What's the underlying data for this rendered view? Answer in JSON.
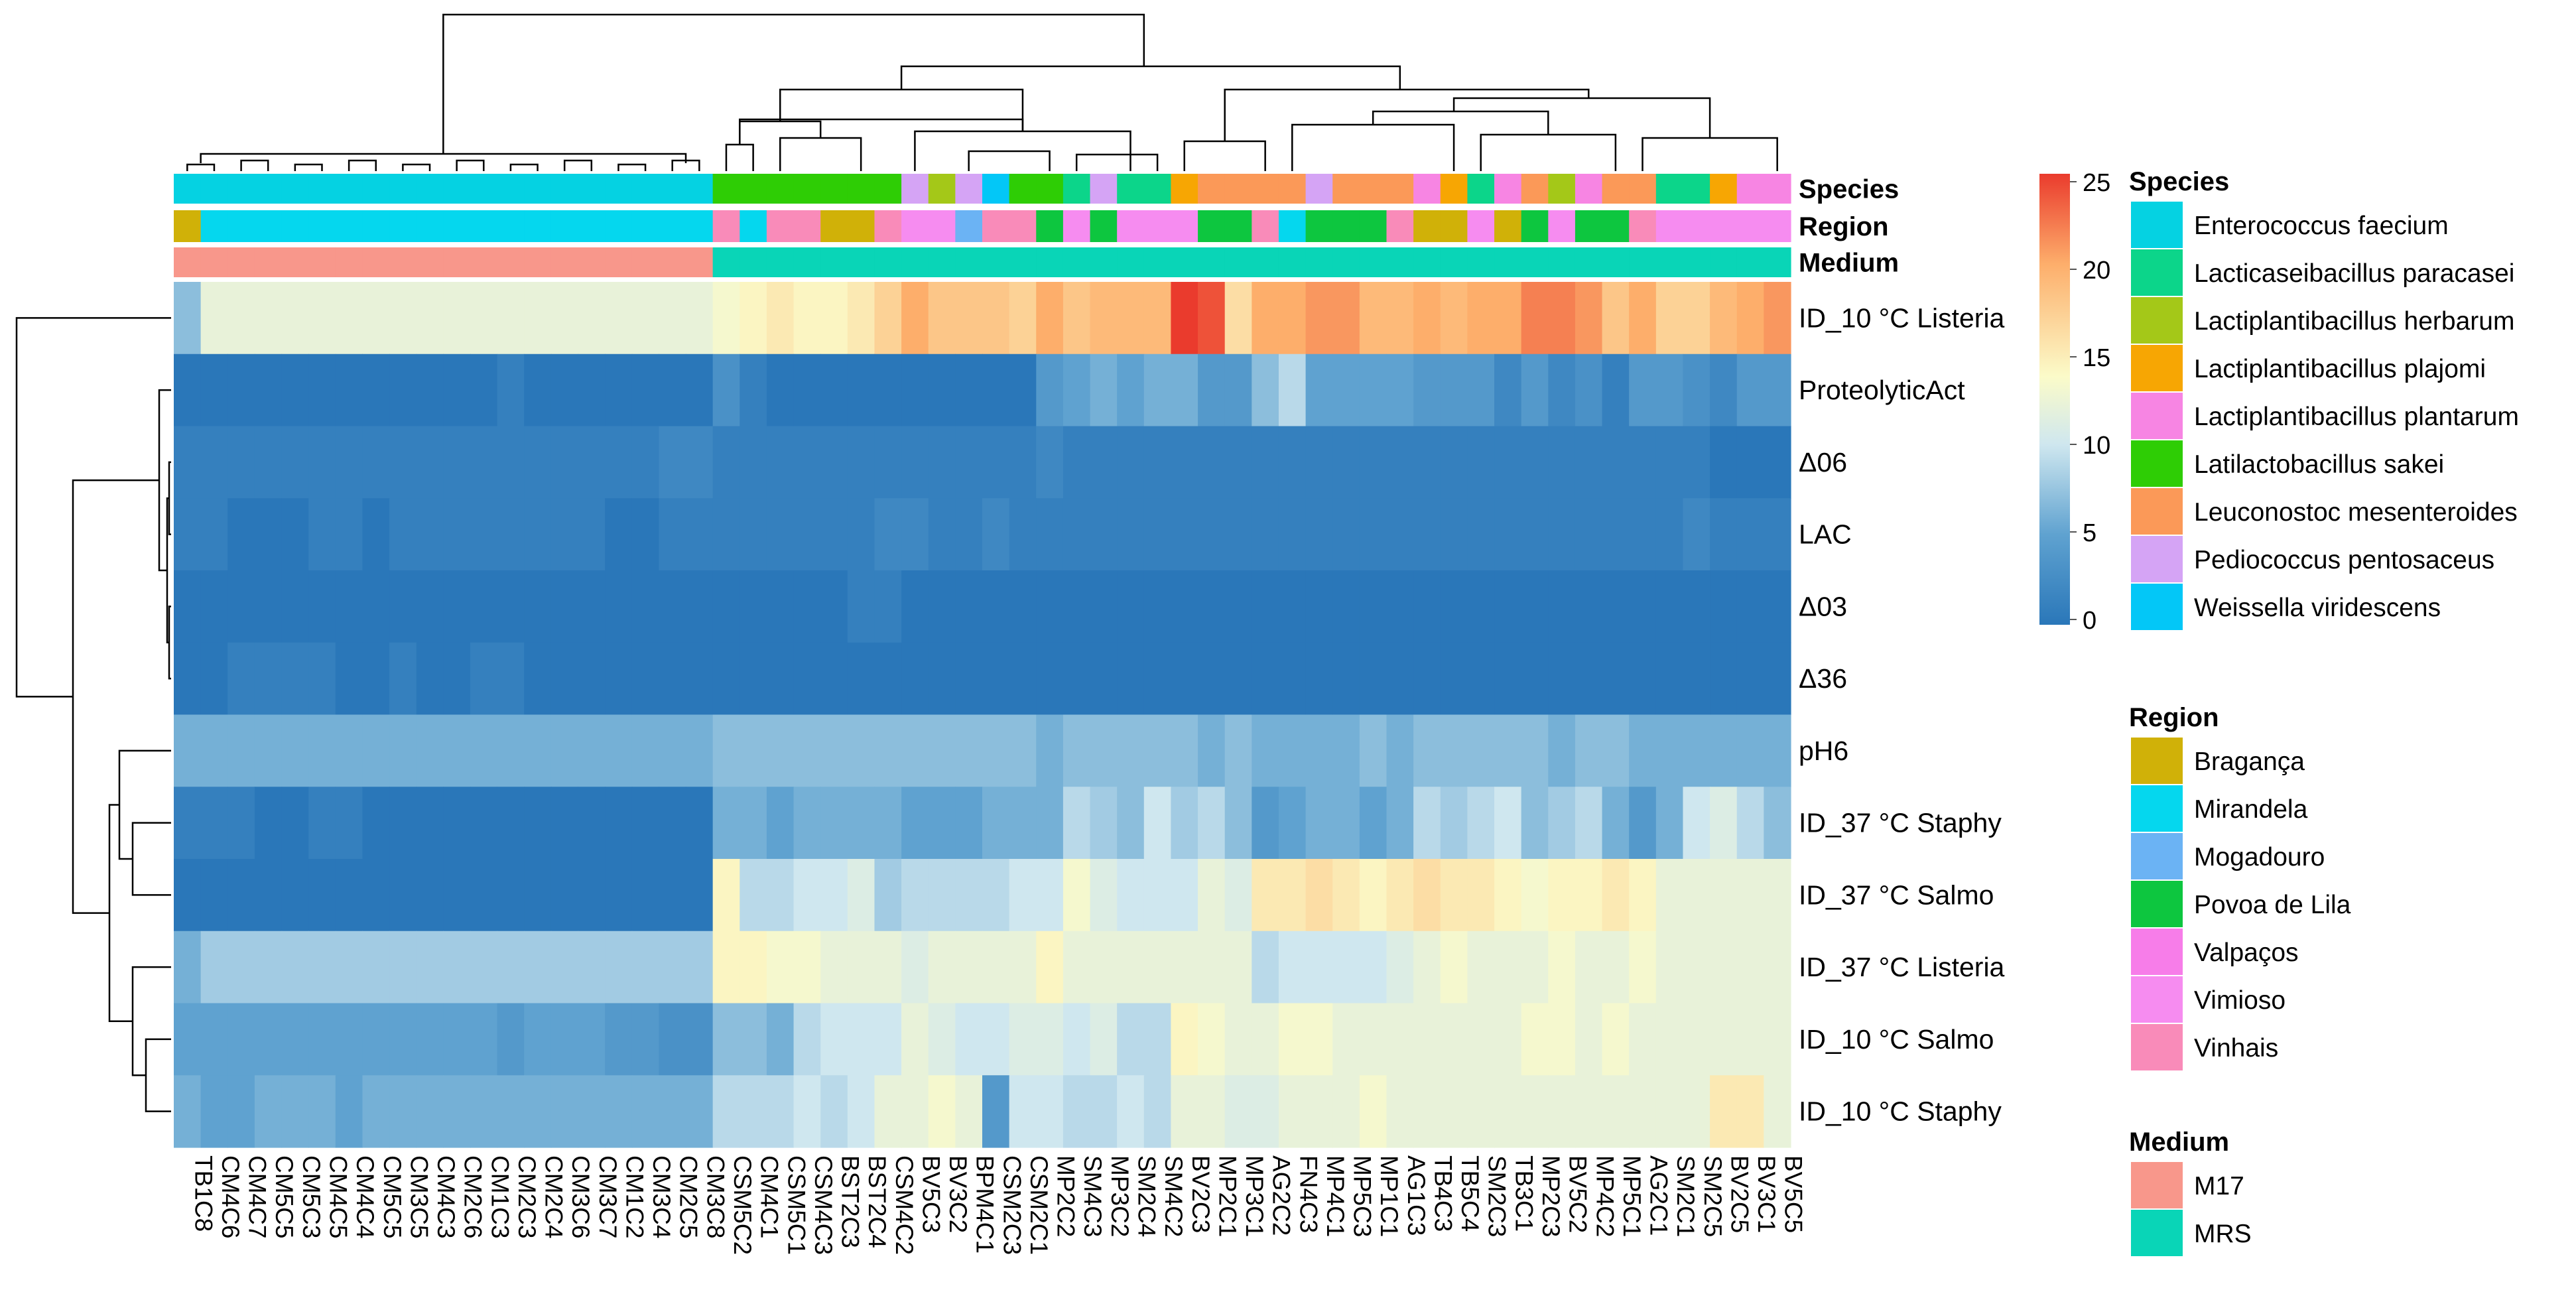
{
  "chart_data": {
    "type": "heatmap",
    "annotation_labels": [
      "Species",
      "Region",
      "Medium"
    ],
    "column_labels": [
      "TB1C8",
      "CM4C6",
      "CM4C7",
      "CM5C5",
      "CM5C3",
      "CM4C5",
      "CM4C4",
      "CM5C5",
      "CM3C5",
      "CM4C3",
      "CM2C6",
      "CM1C3",
      "CM2C3",
      "CM2C4",
      "CM3C6",
      "CM3C7",
      "CM1C2",
      "CM3C4",
      "CM2C5",
      "CM3C8",
      "CSM5C2",
      "CM4C1",
      "CSM5C1",
      "CSM4C3",
      "BST2C3",
      "BST2C4",
      "CSM4C2",
      "BV5C3",
      "BV3C2",
      "BPM4C1",
      "CSM2C3",
      "CSM2C1",
      "MP2C2",
      "SM4C3",
      "MP3C2",
      "SM2C4",
      "SM4C2",
      "BV2C3",
      "MP2C1",
      "MP3C1",
      "AG2C2",
      "FN4C3",
      "MP4C1",
      "MP5C3",
      "MP1C1",
      "AG1C3",
      "TB4C3",
      "TB5C4",
      "SM2C3",
      "TB3C1",
      "MP2C3",
      "BV5C2",
      "MP4C2",
      "MP5C1",
      "AG2C1",
      "SM2C1",
      "SM2C5",
      "BV2C5",
      "BV3C1",
      "BV5C5"
    ],
    "row_labels": [
      "ID_10 °C Listeria",
      "ProteolyticAct",
      "Δ06",
      "LAC",
      "Δ03",
      "Δ36",
      "pH6",
      "ID_37 °C Staphy",
      "ID_37 °C Salmo",
      "ID_37 °C Listeria",
      "ID_10 °C Salmo",
      "ID_10 °C Staphy"
    ],
    "species_per_column": [
      "Enterococcus faecium",
      "Enterococcus faecium",
      "Enterococcus faecium",
      "Enterococcus faecium",
      "Enterococcus faecium",
      "Enterococcus faecium",
      "Enterococcus faecium",
      "Enterococcus faecium",
      "Enterococcus faecium",
      "Enterococcus faecium",
      "Enterococcus faecium",
      "Enterococcus faecium",
      "Enterococcus faecium",
      "Enterococcus faecium",
      "Enterococcus faecium",
      "Enterococcus faecium",
      "Enterococcus faecium",
      "Enterococcus faecium",
      "Enterococcus faecium",
      "Enterococcus faecium",
      "Latilactobacillus sakei",
      "Latilactobacillus sakei",
      "Latilactobacillus sakei",
      "Latilactobacillus sakei",
      "Latilactobacillus sakei",
      "Latilactobacillus sakei",
      "Latilactobacillus sakei",
      "Pediococcus pentosaceus",
      "Lactiplantibacillus herbarum",
      "Pediococcus pentosaceus",
      "Weissella viridescens",
      "Latilactobacillus sakei",
      "Latilactobacillus sakei",
      "Lacticaseibacillus paracasei",
      "Pediococcus pentosaceus",
      "Lacticaseibacillus paracasei",
      "Lacticaseibacillus paracasei",
      "Lactiplantibacillus plajomi",
      "Leuconostoc mesenteroides",
      "Leuconostoc mesenteroides",
      "Leuconostoc mesenteroides",
      "Leuconostoc mesenteroides",
      "Pediococcus pentosaceus",
      "Leuconostoc mesenteroides",
      "Leuconostoc mesenteroides",
      "Leuconostoc mesenteroides",
      "Lactiplantibacillus plantarum",
      "Lactiplantibacillus plajomi",
      "Lacticaseibacillus paracasei",
      "Lactiplantibacillus plantarum",
      "Leuconostoc mesenteroides",
      "Lactiplantibacillus herbarum",
      "Lactiplantibacillus plantarum",
      "Leuconostoc mesenteroides",
      "Leuconostoc mesenteroides",
      "Lacticaseibacillus paracasei",
      "Lacticaseibacillus paracasei",
      "Lactiplantibacillus plajomi",
      "Lactiplantibacillus plantarum",
      "Lactiplantibacillus plantarum"
    ],
    "region_per_column": [
      "Bragança",
      "Mirandela",
      "Mirandela",
      "Mirandela",
      "Mirandela",
      "Mirandela",
      "Mirandela",
      "Mirandela",
      "Mirandela",
      "Mirandela",
      "Mirandela",
      "Mirandela",
      "Mirandela",
      "Mirandela",
      "Mirandela",
      "Mirandela",
      "Mirandela",
      "Mirandela",
      "Mirandela",
      "Mirandela",
      "Vinhais",
      "Mirandela",
      "Vinhais",
      "Vinhais",
      "Bragança",
      "Bragança",
      "Vinhais",
      "Vimioso",
      "Vimioso",
      "Mogadouro",
      "Vinhais",
      "Vinhais",
      "Povoa de Lila",
      "Vimioso",
      "Povoa de Lila",
      "Vimioso",
      "Vimioso",
      "Vimioso",
      "Povoa de Lila",
      "Povoa de Lila",
      "Vinhais",
      "Mirandela",
      "Povoa de Lila",
      "Povoa de Lila",
      "Povoa de Lila",
      "Vinhais",
      "Bragança",
      "Bragança",
      "Vimioso",
      "Bragança",
      "Povoa de Lila",
      "Vimioso",
      "Povoa de Lila",
      "Povoa de Lila",
      "Vinhais",
      "Vimioso",
      "Vimioso",
      "Vimioso",
      "Vimioso",
      "Vimioso"
    ],
    "medium_per_column": [
      "M17",
      "M17",
      "M17",
      "M17",
      "M17",
      "M17",
      "M17",
      "M17",
      "M17",
      "M17",
      "M17",
      "M17",
      "M17",
      "M17",
      "M17",
      "M17",
      "M17",
      "M17",
      "M17",
      "M17",
      "MRS",
      "MRS",
      "MRS",
      "MRS",
      "MRS",
      "MRS",
      "MRS",
      "MRS",
      "MRS",
      "MRS",
      "MRS",
      "MRS",
      "MRS",
      "MRS",
      "MRS",
      "MRS",
      "MRS",
      "MRS",
      "MRS",
      "MRS",
      "MRS",
      "MRS",
      "MRS",
      "MRS",
      "MRS",
      "MRS",
      "MRS",
      "MRS",
      "MRS",
      "MRS",
      "MRS",
      "MRS",
      "MRS",
      "MRS",
      "MRS",
      "MRS",
      "MRS",
      "MRS",
      "MRS",
      "MRS"
    ],
    "values": [
      [
        7,
        12,
        12,
        12,
        12,
        12,
        12,
        12,
        12,
        12,
        12,
        12,
        12,
        12,
        12,
        12,
        12,
        12,
        12,
        12,
        13,
        14,
        15,
        14,
        14,
        15,
        17,
        20,
        18,
        18,
        18,
        17,
        20,
        18,
        19,
        19,
        19,
        25,
        24,
        16,
        20,
        20,
        21,
        21,
        19,
        19,
        20,
        19,
        20,
        20,
        22,
        22,
        21,
        18,
        20,
        17,
        17,
        19,
        20,
        21
      ],
      [
        0,
        0,
        0,
        0,
        0,
        0,
        0,
        0,
        0,
        0,
        0,
        0,
        1,
        0,
        0,
        0,
        0,
        0,
        0,
        0,
        3,
        1,
        0,
        0,
        0,
        0,
        0,
        0,
        0,
        0,
        0,
        0,
        4,
        5,
        6,
        5,
        6,
        6,
        4,
        4,
        7,
        9,
        5,
        5,
        5,
        5,
        4,
        4,
        4,
        2,
        4,
        2,
        3,
        1,
        4,
        4,
        3,
        2,
        4,
        4
      ],
      [
        1,
        1,
        1,
        1,
        1,
        1,
        1,
        1,
        1,
        1,
        1,
        1,
        1,
        1,
        1,
        1,
        1,
        1,
        2,
        2,
        1,
        1,
        1,
        1,
        1,
        1,
        1,
        1,
        1,
        1,
        1,
        1,
        2,
        1,
        1,
        1,
        1,
        1,
        1,
        1,
        1,
        1,
        1,
        1,
        1,
        1,
        1,
        1,
        1,
        1,
        1,
        1,
        1,
        1,
        1,
        1,
        1,
        0,
        0,
        0
      ],
      [
        1,
        1,
        0,
        0,
        0,
        1,
        1,
        0,
        1,
        1,
        1,
        1,
        1,
        1,
        1,
        1,
        0,
        0,
        1,
        1,
        1,
        1,
        1,
        1,
        1,
        1,
        2,
        2,
        1,
        1,
        2,
        1,
        1,
        1,
        1,
        1,
        1,
        1,
        1,
        1,
        1,
        1,
        1,
        1,
        1,
        1,
        1,
        1,
        1,
        1,
        1,
        1,
        1,
        1,
        1,
        1,
        2,
        1,
        1,
        1
      ],
      [
        0,
        0,
        0,
        0,
        0,
        0,
        0,
        0,
        0,
        0,
        0,
        0,
        0,
        0,
        0,
        0,
        0,
        0,
        0,
        0,
        0,
        0,
        0,
        0,
        0,
        1,
        1,
        0,
        0,
        0,
        0,
        0,
        0,
        0,
        0,
        0,
        0,
        0,
        0,
        0,
        0,
        0,
        0,
        0,
        0,
        0,
        0,
        0,
        0,
        0,
        0,
        0,
        0,
        0,
        0,
        0,
        0,
        0,
        0,
        0
      ],
      [
        0,
        0,
        1,
        1,
        1,
        1,
        0,
        0,
        1,
        0,
        0,
        1,
        1,
        0,
        0,
        0,
        0,
        0,
        0,
        0,
        0,
        0,
        0,
        0,
        0,
        0,
        0,
        0,
        0,
        0,
        0,
        0,
        0,
        0,
        0,
        0,
        0,
        0,
        0,
        0,
        0,
        0,
        0,
        0,
        0,
        0,
        0,
        0,
        0,
        0,
        0,
        0,
        0,
        0,
        0,
        0,
        0,
        0,
        0,
        0
      ],
      [
        6,
        6,
        6,
        6,
        6,
        6,
        6,
        6,
        6,
        6,
        6,
        6,
        6,
        6,
        6,
        6,
        6,
        6,
        6,
        6,
        7,
        7,
        7,
        7,
        7,
        7,
        7,
        7,
        7,
        7,
        7,
        7,
        6,
        7,
        7,
        7,
        7,
        7,
        6,
        7,
        6,
        6,
        6,
        6,
        7,
        6,
        7,
        7,
        7,
        7,
        7,
        6,
        7,
        7,
        6,
        6,
        6,
        6,
        6,
        6
      ],
      [
        1,
        1,
        1,
        0,
        0,
        1,
        1,
        0,
        0,
        0,
        0,
        0,
        0,
        0,
        0,
        0,
        0,
        0,
        0,
        0,
        6,
        6,
        5,
        6,
        6,
        6,
        6,
        5,
        5,
        5,
        6,
        6,
        6,
        9,
        8,
        7,
        10,
        8,
        9,
        7,
        4,
        5,
        6,
        6,
        5,
        6,
        9,
        8,
        9,
        10,
        7,
        8,
        9,
        6,
        4,
        6,
        10,
        11,
        9,
        7
      ],
      [
        0,
        0,
        0,
        0,
        0,
        0,
        0,
        0,
        0,
        0,
        0,
        0,
        0,
        0,
        0,
        0,
        0,
        0,
        0,
        0,
        14,
        9,
        9,
        10,
        10,
        11,
        8,
        9,
        9,
        9,
        9,
        10,
        10,
        13,
        11,
        10,
        10,
        10,
        12,
        11,
        15,
        15,
        16,
        15,
        14,
        15,
        16,
        15,
        15,
        14,
        13,
        14,
        14,
        15,
        14,
        12,
        12,
        12,
        12,
        12
      ],
      [
        6,
        8,
        8,
        8,
        8,
        8,
        8,
        8,
        8,
        8,
        8,
        8,
        8,
        8,
        8,
        8,
        8,
        8,
        8,
        8,
        14,
        14,
        13,
        13,
        12,
        12,
        12,
        11,
        12,
        12,
        12,
        12,
        14,
        12,
        12,
        12,
        12,
        12,
        12,
        12,
        9,
        10,
        10,
        10,
        10,
        11,
        12,
        13,
        12,
        12,
        12,
        13,
        12,
        12,
        13,
        12,
        12,
        12,
        12,
        12
      ],
      [
        5,
        5,
        5,
        5,
        5,
        5,
        5,
        5,
        5,
        5,
        5,
        5,
        4,
        5,
        5,
        5,
        4,
        4,
        3,
        3,
        7,
        7,
        6,
        9,
        10,
        10,
        10,
        12,
        11,
        10,
        10,
        11,
        11,
        10,
        11,
        9,
        9,
        14,
        13,
        12,
        12,
        13,
        13,
        12,
        12,
        12,
        12,
        12,
        12,
        12,
        13,
        13,
        12,
        13,
        12,
        12,
        12,
        12,
        12,
        12
      ],
      [
        6,
        5,
        5,
        6,
        6,
        6,
        5,
        6,
        6,
        6,
        6,
        6,
        6,
        6,
        6,
        6,
        6,
        6,
        6,
        6,
        9,
        9,
        9,
        10,
        9,
        10,
        12,
        12,
        13,
        12,
        4,
        10,
        10,
        9,
        9,
        10,
        9,
        12,
        12,
        11,
        11,
        12,
        12,
        12,
        13,
        12,
        12,
        12,
        12,
        12,
        12,
        12,
        12,
        12,
        12,
        12,
        12,
        15,
        15,
        12
      ]
    ],
    "colorbar": {
      "min": 0,
      "max": 25,
      "ticks": [
        "25",
        "20",
        "15",
        "10",
        "5",
        "0"
      ],
      "stops": [
        "#2a77b9",
        "#92c3df",
        "#f3f9dc",
        "#fdd79b",
        "#f47d4a",
        "#ea3b2d"
      ]
    },
    "legend": {
      "species": {
        "title": "Species",
        "items": [
          {
            "label": "Enterococcus faecium",
            "color": "#05d2e2"
          },
          {
            "label": "Lacticaseibacillus paracasei",
            "color": "#0cd58a"
          },
          {
            "label": "Lactiplantibacillus herbarum",
            "color": "#a4c818"
          },
          {
            "label": "Lactiplantibacillus plajomi",
            "color": "#f7a603"
          },
          {
            "label": "Lactiplantibacillus plantarum",
            "color": "#f785e3"
          },
          {
            "label": "Latilactobacillus sakei",
            "color": "#2ecd05"
          },
          {
            "label": "Leuconostoc mesenteroides",
            "color": "#fb9958"
          },
          {
            "label": "Pediococcus pentosaceus",
            "color": "#d5a4f5"
          },
          {
            "label": "Weissella viridescens",
            "color": "#03c7f7"
          }
        ]
      },
      "region": {
        "title": "Region",
        "items": [
          {
            "label": "Bragança",
            "color": "#d0b108"
          },
          {
            "label": "Mirandela",
            "color": "#05d7ee"
          },
          {
            "label": "Mogadouro",
            "color": "#6bb3f4"
          },
          {
            "label": "Povoa de Lila",
            "color": "#0dc63f"
          },
          {
            "label": "Valpaços",
            "color": "#f77de9"
          },
          {
            "label": "Vimioso",
            "color": "#f68cf0"
          },
          {
            "label": "Vinhais",
            "color": "#f98bb9"
          }
        ]
      },
      "medium": {
        "title": "Medium",
        "items": [
          {
            "label": "M17",
            "color": "#f8978b"
          },
          {
            "label": "MRS",
            "color": "#09d5b7"
          }
        ]
      }
    }
  }
}
